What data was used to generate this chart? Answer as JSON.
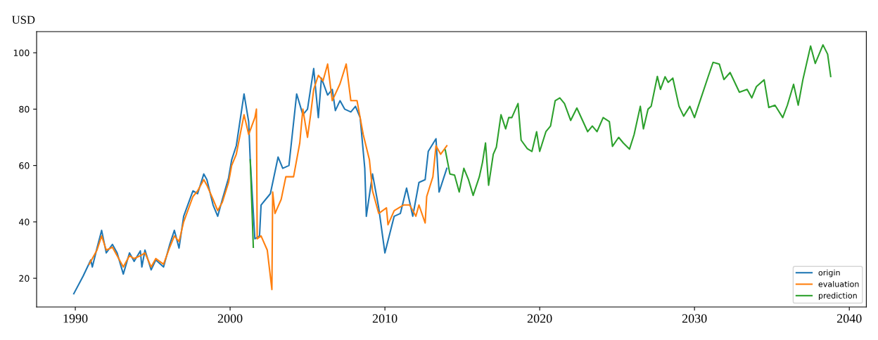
{
  "chart_data": {
    "type": "line",
    "ylabel": "USD",
    "xlim": [
      1987.5,
      2041.1
    ],
    "xticks": [
      1990,
      2000,
      2010,
      2020,
      2030,
      2040
    ],
    "ylim": [
      9.8,
      107.5
    ],
    "yticks": [
      20,
      40,
      60,
      80,
      100
    ],
    "grid": false,
    "legend": "bottom right",
    "marker": "none",
    "line_style": "solid",
    "series": [
      {
        "name": "origin",
        "color": "#1f77b4",
        "x": [
          1989.9,
          1990.5,
          1991.0,
          1991.1,
          1991.4,
          1991.7,
          1992.0,
          1992.4,
          1992.7,
          1993.1,
          1993.5,
          1993.8,
          1994.2,
          1994.3,
          1994.5,
          1994.9,
          1995.2,
          1995.7,
          1996.1,
          1996.4,
          1996.7,
          1997.0,
          1997.6,
          1997.9,
          1998.3,
          1998.5,
          1998.9,
          1999.2,
          1999.5,
          1999.9,
          2000.1,
          2000.4,
          2000.9,
          2001.2,
          2001.3,
          2001.6,
          2001.9,
          2002.0,
          2002.3,
          2002.6,
          2003.1,
          2003.4,
          2003.8,
          2004.3,
          2004.7,
          2005.0,
          2005.4,
          2005.7,
          2005.9,
          2006.3,
          2006.6,
          2006.8,
          2007.1,
          2007.4,
          2007.8,
          2008.1,
          2008.4,
          2008.7,
          2008.8,
          2009.2,
          2009.6,
          2010.0,
          2010.6,
          2011.0,
          2011.4,
          2011.8,
          2012.2,
          2012.6,
          2012.8,
          2013.3,
          2013.5,
          2014.0
        ],
        "values": [
          14.5,
          20.7,
          26.5,
          24,
          30.7,
          37,
          29,
          32,
          29,
          21.5,
          29,
          26,
          29.7,
          24,
          30,
          23,
          26.5,
          24,
          32,
          37,
          30.7,
          42,
          51,
          50,
          57,
          55,
          46,
          42,
          48,
          55.6,
          62,
          67,
          85.4,
          75.5,
          62,
          34,
          35,
          46,
          48,
          50,
          63,
          59,
          60,
          85.4,
          78,
          80,
          94.4,
          77,
          91,
          85,
          87,
          79.5,
          83,
          80,
          79,
          81,
          77,
          59,
          42,
          57,
          45,
          29,
          42,
          43,
          52,
          42,
          54,
          55,
          65,
          69.5,
          50.6,
          59
        ]
      },
      {
        "name": "evaluation",
        "color": "#ff7f0e",
        "x": [
          1990.9,
          1991.4,
          1991.7,
          1992.0,
          1992.4,
          1992.7,
          1993.1,
          1993.5,
          1993.8,
          1994.2,
          1994.5,
          1994.9,
          1995.2,
          1995.7,
          1996.1,
          1996.4,
          1996.7,
          1997.0,
          1997.6,
          1997.9,
          1998.3,
          1998.5,
          1998.9,
          1999.2,
          1999.5,
          1999.9,
          2000.1,
          2000.4,
          2000.9,
          2001.2,
          2001.6,
          2001.7,
          2001.75,
          2002.0,
          2002.4,
          2002.7,
          2002.75,
          2002.9,
          2003.3,
          2003.6,
          2004.1,
          2004.5,
          2004.7,
          2005.0,
          2005.2,
          2005.4,
          2005.7,
          2006.0,
          2006.3,
          2006.6,
          2007.1,
          2007.5,
          2007.8,
          2008.2,
          2008.6,
          2009.0,
          2009.2,
          2009.6,
          2010.1,
          2010.2,
          2010.6,
          2011.2,
          2011.6,
          2012.0,
          2012.2,
          2012.6,
          2012.7,
          2013.1,
          2013.3,
          2013.6,
          2014.0
        ],
        "values": [
          25,
          30,
          35,
          30,
          31,
          28,
          24,
          28,
          27,
          28,
          29,
          24,
          27,
          25,
          31,
          35,
          33,
          40,
          49,
          51,
          55,
          53,
          48,
          44,
          47,
          54,
          60,
          64,
          78,
          71,
          77,
          80,
          34,
          35,
          30,
          16,
          50.6,
          43,
          48,
          56,
          56,
          68,
          80,
          70,
          78,
          87,
          92,
          90,
          96,
          83,
          89,
          96,
          83,
          83,
          71,
          62,
          51,
          43,
          45,
          39,
          44,
          46,
          46,
          42,
          46,
          39.6,
          49,
          56,
          67,
          64,
          67
        ]
      },
      {
        "name": "prediction",
        "color": "#2ca02c",
        "x": [
          2001.3,
          2001.5,
          null,
          2013.9,
          2014.2,
          2014.5,
          2014.8,
          2015.1,
          2015.4,
          2015.7,
          2016.1,
          2016.3,
          2016.5,
          2016.7,
          2017.0,
          2017.2,
          2017.5,
          2017.8,
          2018.0,
          2018.2,
          2018.6,
          2018.8,
          2019.2,
          2019.5,
          2019.8,
          2020.0,
          2020.4,
          2020.7,
          2021.0,
          2021.3,
          2021.6,
          2022.0,
          2022.4,
          2022.8,
          2023.1,
          2023.4,
          2023.7,
          2024.1,
          2024.5,
          2024.7,
          2025.1,
          2025.4,
          2025.8,
          2026.1,
          2026.5,
          2026.7,
          2027.0,
          2027.2,
          2027.6,
          2027.8,
          2028.1,
          2028.3,
          2028.6,
          2029.0,
          2029.3,
          2029.7,
          2030.0,
          2030.4,
          2030.9,
          2031.2,
          2031.6,
          2031.9,
          2032.3,
          2032.9,
          2033.4,
          2033.7,
          2034.0,
          2034.5,
          2034.8,
          2035.2,
          2035.7,
          2036.0,
          2036.4,
          2036.7,
          2037.0,
          2037.5,
          2037.8,
          2038.3,
          2038.6,
          2038.8
        ],
        "values": [
          62,
          31,
          null,
          65.5,
          57,
          56.6,
          50.6,
          59,
          55,
          49.4,
          56,
          61,
          68,
          53,
          64,
          66.5,
          78,
          73,
          77,
          77,
          82,
          69,
          66,
          65,
          72,
          65,
          72,
          74,
          83,
          84,
          82,
          76,
          80.4,
          75.6,
          72,
          74,
          72,
          77,
          75.6,
          66.8,
          70,
          68,
          65.8,
          71,
          81,
          73,
          80,
          81,
          91.6,
          87,
          91.5,
          89.5,
          91,
          81,
          77.5,
          81,
          77,
          83.6,
          91.8,
          96.6,
          96,
          90.5,
          93,
          86,
          87,
          84,
          88,
          90.4,
          80.6,
          81.4,
          77,
          81.4,
          88.8,
          81.4,
          90.4,
          102.4,
          96.2,
          102.8,
          99.5,
          91.6
        ]
      }
    ]
  }
}
